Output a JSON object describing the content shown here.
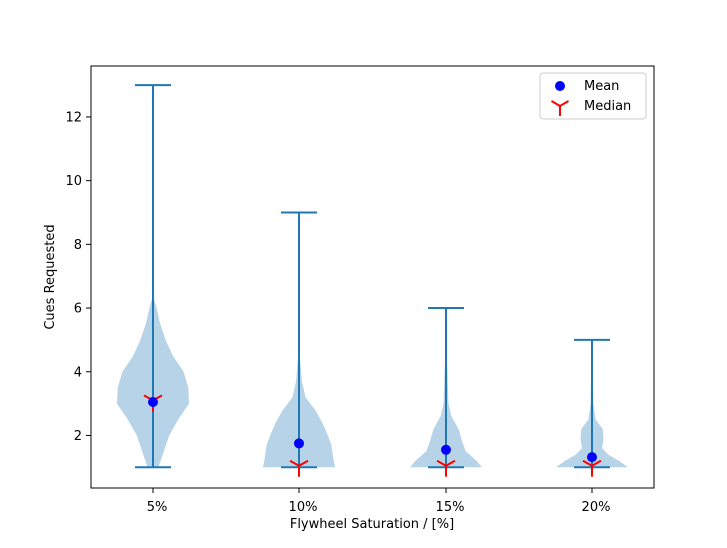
{
  "chart_data": {
    "type": "violin",
    "title": "",
    "xlabel": "Flywheel Saturation / [%]",
    "ylabel": "Cues Requested",
    "categories": [
      "5%",
      "10%",
      "15%",
      "20%"
    ],
    "ylim": [
      0.35,
      13.6
    ],
    "yticks": [
      2,
      4,
      6,
      8,
      10,
      12
    ],
    "grid": false,
    "legend_position": "top-right",
    "colors": {
      "violin": "#1f77b4",
      "mean": "#0000ff",
      "median": "#ff0000"
    },
    "legend": [
      {
        "label": "Mean",
        "marker": "circle"
      },
      {
        "label": "Median",
        "marker": "tri_down"
      }
    ],
    "series": [
      {
        "category": "5%",
        "min": 1,
        "max": 13,
        "mean": 3.05,
        "median": 3.1,
        "density": [
          [
            1.0,
            0.15
          ],
          [
            1.5,
            0.3
          ],
          [
            2.0,
            0.45
          ],
          [
            2.5,
            0.7
          ],
          [
            3.0,
            1.0
          ],
          [
            3.5,
            0.98
          ],
          [
            4.0,
            0.85
          ],
          [
            4.5,
            0.55
          ],
          [
            5.0,
            0.35
          ],
          [
            5.5,
            0.2
          ],
          [
            6.0,
            0.1
          ],
          [
            6.4,
            0.0
          ]
        ]
      },
      {
        "category": "10%",
        "min": 1,
        "max": 9,
        "mean": 1.75,
        "median": 1.05,
        "density": [
          [
            1.0,
            1.0
          ],
          [
            1.3,
            0.95
          ],
          [
            1.7,
            0.9
          ],
          [
            2.0,
            0.8
          ],
          [
            2.4,
            0.65
          ],
          [
            2.8,
            0.45
          ],
          [
            3.2,
            0.18
          ],
          [
            3.7,
            0.08
          ],
          [
            4.3,
            0.04
          ],
          [
            4.8,
            0.0
          ]
        ]
      },
      {
        "category": "15%",
        "min": 1,
        "max": 6,
        "mean": 1.55,
        "median": 1.05,
        "density": [
          [
            1.0,
            1.0
          ],
          [
            1.2,
            0.85
          ],
          [
            1.5,
            0.55
          ],
          [
            1.8,
            0.45
          ],
          [
            2.2,
            0.35
          ],
          [
            2.6,
            0.15
          ],
          [
            3.0,
            0.07
          ],
          [
            3.6,
            0.05
          ],
          [
            4.1,
            0.04
          ],
          [
            4.5,
            0.0
          ]
        ]
      },
      {
        "category": "20%",
        "min": 1,
        "max": 5,
        "mean": 1.32,
        "median": 1.05,
        "density": [
          [
            1.0,
            1.0
          ],
          [
            1.2,
            0.75
          ],
          [
            1.4,
            0.45
          ],
          [
            1.6,
            0.28
          ],
          [
            1.9,
            0.32
          ],
          [
            2.2,
            0.3
          ],
          [
            2.5,
            0.1
          ],
          [
            3.0,
            0.04
          ],
          [
            3.6,
            0.03
          ],
          [
            4.2,
            0.0
          ]
        ]
      }
    ]
  }
}
